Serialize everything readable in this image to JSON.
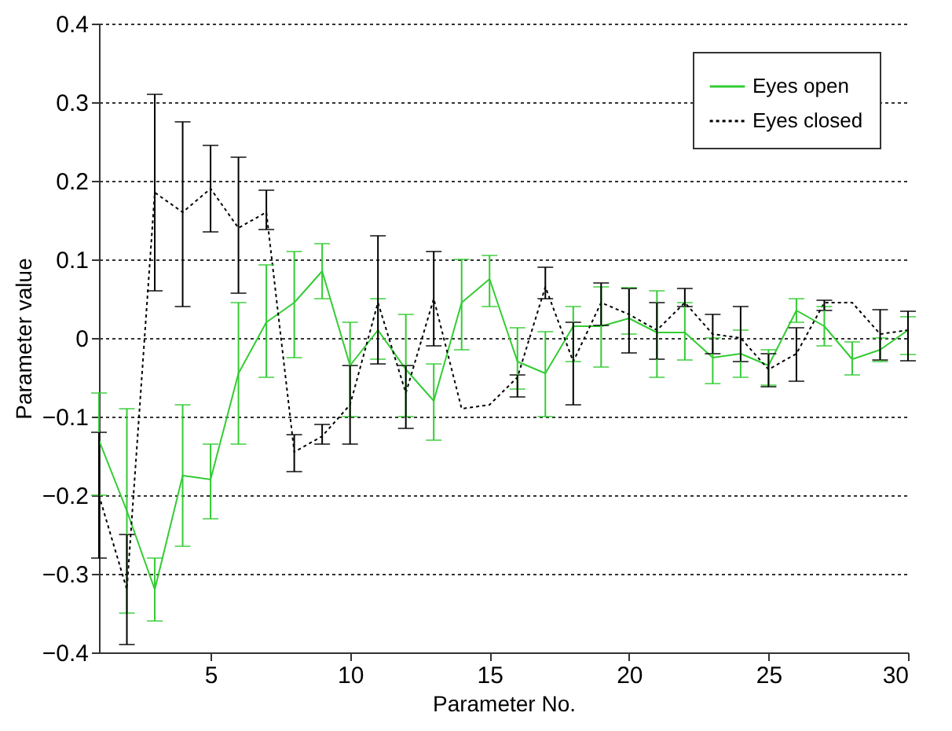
{
  "chart_data": {
    "type": "line",
    "xlabel": "Parameter No.",
    "ylabel": "Parameter value",
    "x": [
      1,
      2,
      3,
      4,
      5,
      6,
      7,
      8,
      9,
      10,
      11,
      12,
      13,
      14,
      15,
      16,
      17,
      18,
      19,
      20,
      21,
      22,
      23,
      24,
      25,
      26,
      27,
      28,
      29,
      30
    ],
    "xlim": [
      1,
      30
    ],
    "xticks": [
      5,
      10,
      15,
      20,
      25,
      30
    ],
    "ylim": [
      -0.4,
      0.4
    ],
    "yticks": [
      -0.4,
      -0.3,
      -0.2,
      -0.1,
      0,
      0.1,
      0.2,
      0.3,
      0.4
    ],
    "grid": "y",
    "legend": "top right",
    "marker": "none",
    "series": [
      {
        "name": "Eyes open",
        "color": "#33cc33",
        "line_style": "solid",
        "values": [
          -0.13,
          -0.22,
          -0.32,
          -0.175,
          -0.18,
          -0.045,
          0.02,
          0.045,
          0.085,
          -0.035,
          0.01,
          -0.04,
          -0.08,
          0.045,
          0.075,
          -0.03,
          -0.045,
          0.015,
          0.015,
          0.025,
          0.007,
          0.007,
          -0.025,
          -0.02,
          -0.035,
          0.035,
          0.015,
          -0.027,
          -0.015,
          0.01
        ],
        "errors": [
          [
            -0.2,
            -0.07
          ],
          [
            -0.35,
            -0.09
          ],
          [
            -0.36,
            -0.28
          ],
          [
            -0.265,
            -0.085
          ],
          [
            -0.23,
            -0.135
          ],
          [
            -0.135,
            0.045
          ],
          [
            -0.05,
            0.093
          ],
          [
            -0.025,
            0.11
          ],
          [
            0.05,
            0.12
          ],
          [
            -0.1,
            0.02
          ],
          [
            -0.027,
            0.05
          ],
          [
            -0.1,
            0.03
          ],
          [
            -0.13,
            -0.033
          ],
          [
            -0.015,
            0.1
          ],
          [
            0.04,
            0.105
          ],
          [
            -0.065,
            0.013
          ],
          [
            -0.1,
            0.008
          ],
          [
            -0.03,
            0.04
          ],
          [
            -0.037,
            0.065
          ],
          [
            0.005,
            0.064
          ],
          [
            -0.05,
            0.06
          ],
          [
            -0.028,
            0.045
          ],
          [
            -0.058,
            0
          ],
          [
            -0.05,
            0.01
          ],
          [
            -0.06,
            -0.015
          ],
          [
            0.02,
            0.05
          ],
          [
            -0.01,
            0.04
          ],
          [
            -0.047,
            -0.005
          ],
          [
            -0.03,
            0
          ],
          [
            -0.021,
            0.027
          ]
        ]
      },
      {
        "name": "Eyes closed",
        "color": "#000000",
        "line_style": "dotted",
        "values": [
          -0.2,
          -0.32,
          0.185,
          0.16,
          0.19,
          0.14,
          0.16,
          -0.145,
          -0.125,
          -0.085,
          0.045,
          -0.07,
          0.05,
          -0.09,
          -0.085,
          -0.05,
          0.065,
          -0.03,
          0.045,
          0.03,
          0.01,
          0.045,
          0.005,
          0,
          -0.04,
          -0.02,
          0.045,
          0.045,
          0.005,
          0.01
        ],
        "errors": [
          [
            -0.28,
            -0.12
          ],
          [
            -0.39,
            -0.25
          ],
          [
            0.06,
            0.31
          ],
          [
            0.04,
            0.275
          ],
          [
            0.135,
            0.245
          ],
          [
            0.057,
            0.23
          ],
          [
            0.138,
            0.188
          ],
          [
            -0.17,
            -0.123
          ],
          [
            -0.135,
            -0.11
          ],
          [
            -0.135,
            -0.035
          ],
          [
            -0.033,
            0.13
          ],
          [
            -0.115,
            -0.035
          ],
          [
            -0.01,
            0.11
          ],
          null,
          null,
          [
            -0.075,
            -0.047
          ],
          [
            0.05,
            0.09
          ],
          [
            -0.085,
            0.02
          ],
          [
            0.016,
            0.07
          ],
          [
            -0.019,
            0.063
          ],
          [
            -0.027,
            0.045
          ],
          [
            0.04,
            0.063
          ],
          [
            -0.02,
            0.03
          ],
          [
            -0.03,
            0.04
          ],
          [
            -0.062,
            -0.02
          ],
          [
            -0.055,
            0.013
          ],
          [
            0.035,
            0.048
          ],
          null,
          [
            -0.028,
            0.036
          ],
          [
            -0.029,
            0.034
          ]
        ]
      }
    ]
  }
}
